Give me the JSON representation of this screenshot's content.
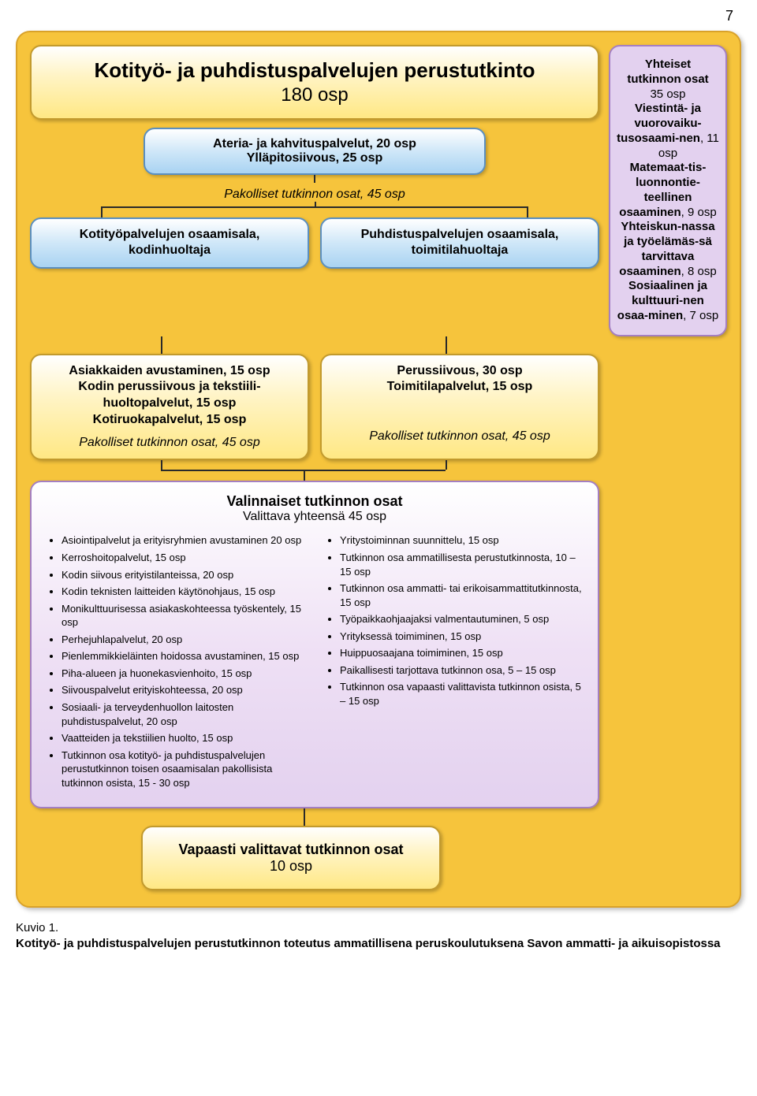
{
  "page_number": "7",
  "colors": {
    "outer_bg": "#f6c43c",
    "outer_border": "#d9a22a",
    "yellow_border": "#c29a2d",
    "blue_border": "#5b8fbf",
    "violet_border": "#a47fc2",
    "violet_bg": "#e3d1ef",
    "connector": "#2a2a2a"
  },
  "title": {
    "line1": "Kotityö- ja puhdistuspalvelujen perustutkinto",
    "line2": "180 osp"
  },
  "header_sub": {
    "line1": "Ateria- ja kahvituspalvelut, 20 osp",
    "line2": "Ylläpitosiivous, 25 osp"
  },
  "mandatory_label": "Pakolliset tutkinnon osat, 45 osp",
  "track_left": {
    "line1": "Kotityöpalvelujen osaamisala,",
    "line2": "kodinhuoltaja"
  },
  "track_right": {
    "line1": "Puhdistuspalvelujen osaamisala,",
    "line2": "toimitilahuoltaja"
  },
  "block_left": {
    "l1": "Asiakkaiden avustaminen, 15 osp",
    "l2": "Kodin perussiivous ja tekstiili-",
    "l3": "huoltopalvelut, 15 osp",
    "l4": "Kotiruokapalvelut, 15 osp",
    "italic": "Pakolliset tutkinnon osat, 45 osp"
  },
  "block_right": {
    "l1": "Perussiivous, 30 osp",
    "l2": "Toimitilapalvelut, 15 osp",
    "italic": "Pakolliset tutkinnon osat, 45 osp"
  },
  "optional": {
    "title": "Valinnaiset tutkinnon osat",
    "sub": "Valittava yhteensä 45 osp",
    "left": [
      "Asiointipalvelut ja erityisryhmien avustaminen 20 osp",
      "Kerroshoitopalvelut, 15 osp",
      "Kodin siivous erityistilanteissa, 20 osp",
      "Kodin teknisten laitteiden käytönohjaus, 15 osp",
      "Monikulttuurisessa asiakaskohteessa työskentely, 15 osp",
      "Perhejuhlapalvelut, 20 osp",
      "Pienlemmikkieläinten hoidossa avustaminen, 15 osp",
      "Piha-alueen ja huonekasvienhoito, 15 osp",
      "Siivouspalvelut erityiskohteessa, 20 osp",
      "Sosiaali- ja terveydenhuollon laitosten puhdistuspalvelut, 20 osp",
      "Vaatteiden ja tekstiilien huolto, 15 osp",
      "Tutkinnon osa kotityö- ja puhdistuspalvelujen perustutkinnon toisen osaamisalan pakollisista tutkinnon osista, 15 - 30 osp"
    ],
    "right": [
      "Yritystoiminnan suunnittelu, 15 osp",
      "Tutkinnon osa ammatillisesta perustutkinnosta, 10 – 15 osp",
      "Tutkinnon osa ammatti- tai erikoisammattitutkinnosta, 15 osp",
      "Työpaikkaohjaajaksi valmentautuminen, 5 osp",
      "Yrityksessä toimiminen, 15 osp",
      "Huippuosaajana toimiminen, 15 osp",
      "Paikallisesti tarjottava tutkinnon osa, 5 – 15 osp",
      "Tutkinnon osa vapaasti valittavista tutkinnon osista, 5 – 15 osp"
    ]
  },
  "free": {
    "line1": "Vapaasti valittavat tutkinnon osat",
    "line2": "10 osp"
  },
  "side": {
    "s1": {
      "bold": "Yhteiset tutkinnon osat",
      "rest": "35 osp"
    },
    "s2": {
      "bold": "Viestintä- ja vuorovaiku-tusosaami-nen",
      "rest": ", 11 osp"
    },
    "s3": {
      "bold": "Matemaat-tis-luonnontie-teellinen osaaminen",
      "rest": ", 9 osp"
    },
    "s4": {
      "bold": "Yhteiskun-nassa ja työelämäs-sä tarvittava osaaminen",
      "rest": ", 8 osp"
    },
    "s5": {
      "bold": "Sosiaalinen ja kulttuuri-nen osaa-minen",
      "rest": ", 7 osp"
    }
  },
  "caption": {
    "l1": "Kuvio 1.",
    "l2": "Kotityö- ja puhdistuspalvelujen perustutkinnon toteutus ammatillisena peruskoulutuksena Savon ammatti- ja aikuisopistossa"
  }
}
